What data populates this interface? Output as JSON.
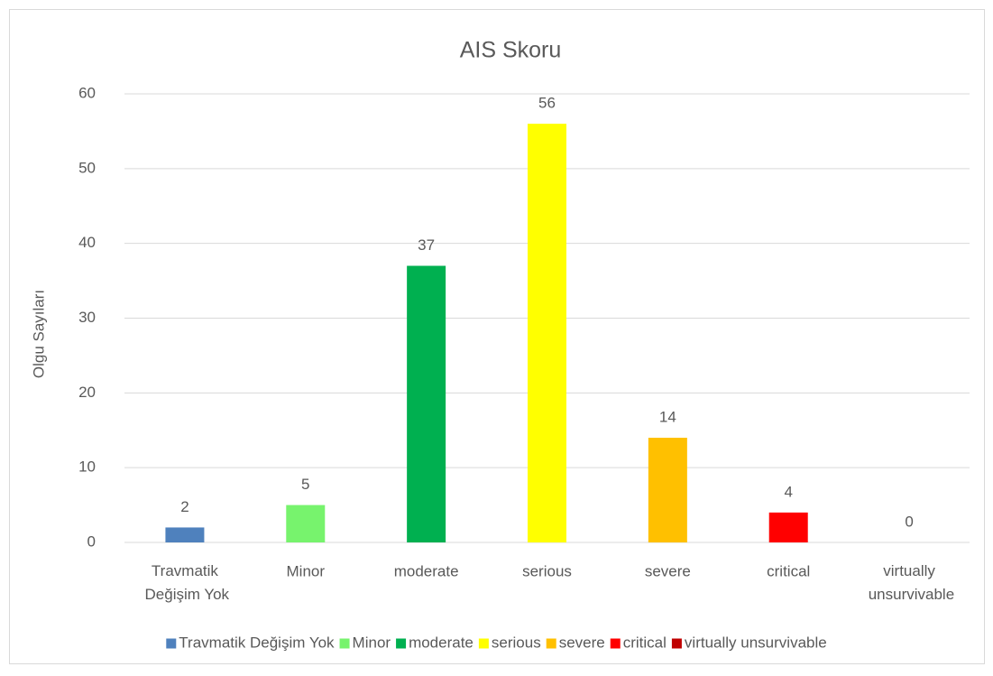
{
  "chart_data": {
    "type": "bar",
    "title": "AIS Skoru",
    "y_label": "Olgu Sayıları",
    "categories": [
      "Travmatik Değişim Yok",
      "Minor",
      "moderate",
      "serious",
      "severe",
      "critical",
      "virtually unsurvivable"
    ],
    "values": [
      2,
      5,
      37,
      56,
      14,
      4,
      0
    ],
    "colors": [
      "#4f81bd",
      "#77f36d",
      "#00b050",
      "#ffff00",
      "#ffc000",
      "#ff0000",
      "#c00000"
    ],
    "ylim": [
      0,
      60
    ],
    "yticks": [
      0,
      10,
      20,
      30,
      40,
      50,
      60
    ],
    "grid": true,
    "legend": "bottom"
  }
}
